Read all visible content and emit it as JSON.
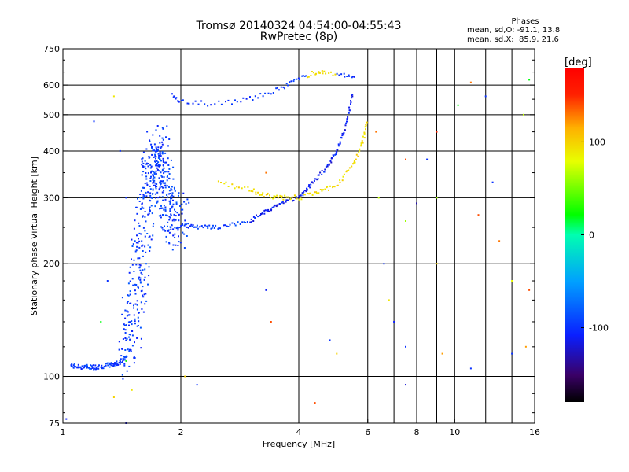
{
  "chart_data": {
    "type": "scatter",
    "title": "Tromsø 20140324 04:54:00-04:55:43",
    "subtitle": "RwPretec (8p)",
    "xlabel": "Frequency [MHz]",
    "ylabel": "Stationary phase Virtual Height [km]",
    "x_scale": "log",
    "y_scale": "log",
    "xlim": [
      1,
      16
    ],
    "ylim": [
      75,
      750
    ],
    "x_ticks": [
      1,
      2,
      4,
      6,
      8,
      10,
      16
    ],
    "x_tick_labels": [
      "1",
      "2",
      "4",
      "6",
      "8",
      "10",
      "16"
    ],
    "x_minor_ticks": [
      7,
      9,
      12,
      14
    ],
    "y_ticks": [
      75,
      100,
      200,
      300,
      400,
      500,
      600,
      750
    ],
    "y_tick_labels": [
      "75",
      "100",
      "200",
      "300",
      "400",
      "500",
      "600",
      "750"
    ],
    "grid": true,
    "legend": {
      "title": "Phases",
      "lines": [
        "mean, sd,O: -91.1, 13.8",
        "mean, sd,X:  85.9, 21.6"
      ]
    },
    "colorbar": {
      "label": "[deg]",
      "range": [
        -180,
        180
      ],
      "ticks": [
        100,
        0,
        -100
      ],
      "tick_labels": [
        "100",
        "0",
        "-100"
      ]
    },
    "o_trace": [
      {
        "x": 1.05,
        "y": 107
      },
      {
        "x": 1.1,
        "y": 106
      },
      {
        "x": 1.16,
        "y": 106
      },
      {
        "x": 1.22,
        "y": 106
      },
      {
        "x": 1.3,
        "y": 107
      },
      {
        "x": 1.36,
        "y": 108
      },
      {
        "x": 1.42,
        "y": 110
      },
      {
        "x": 1.46,
        "y": 114
      },
      {
        "x": 1.5,
        "y": 140
      },
      {
        "x": 1.55,
        "y": 180
      },
      {
        "x": 1.6,
        "y": 240
      },
      {
        "x": 1.65,
        "y": 320
      },
      {
        "x": 1.7,
        "y": 360
      },
      {
        "x": 1.75,
        "y": 400
      },
      {
        "x": 1.8,
        "y": 350
      },
      {
        "x": 1.85,
        "y": 300
      },
      {
        "x": 1.9,
        "y": 270
      },
      {
        "x": 2.0,
        "y": 255
      },
      {
        "x": 2.2,
        "y": 250
      },
      {
        "x": 2.5,
        "y": 250
      },
      {
        "x": 3.0,
        "y": 260
      },
      {
        "x": 3.3,
        "y": 275
      },
      {
        "x": 3.6,
        "y": 290
      },
      {
        "x": 4.0,
        "y": 300
      },
      {
        "x": 4.3,
        "y": 325
      },
      {
        "x": 4.7,
        "y": 360
      },
      {
        "x": 5.0,
        "y": 400
      },
      {
        "x": 5.3,
        "y": 470
      },
      {
        "x": 5.5,
        "y": 580
      }
    ],
    "o_upper_trace": [
      {
        "x": 1.9,
        "y": 560
      },
      {
        "x": 2.0,
        "y": 545
      },
      {
        "x": 2.3,
        "y": 535
      },
      {
        "x": 2.7,
        "y": 540
      },
      {
        "x": 3.1,
        "y": 555
      },
      {
        "x": 3.5,
        "y": 580
      },
      {
        "x": 3.8,
        "y": 605
      },
      {
        "x": 4.1,
        "y": 630
      },
      {
        "x": 4.4,
        "y": 650
      },
      {
        "x": 4.7,
        "y": 648
      },
      {
        "x": 5.2,
        "y": 640
      },
      {
        "x": 5.6,
        "y": 630
      }
    ],
    "x_trace": [
      {
        "x": 2.5,
        "y": 330
      },
      {
        "x": 3.0,
        "y": 315
      },
      {
        "x": 3.3,
        "y": 305
      },
      {
        "x": 3.6,
        "y": 300
      },
      {
        "x": 4.0,
        "y": 300
      },
      {
        "x": 4.5,
        "y": 310
      },
      {
        "x": 5.0,
        "y": 325
      },
      {
        "x": 5.5,
        "y": 365
      },
      {
        "x": 5.8,
        "y": 420
      },
      {
        "x": 6.0,
        "y": 480
      }
    ],
    "scattered_points": [
      {
        "x": 1.2,
        "y": 480,
        "phase": -100
      },
      {
        "x": 1.35,
        "y": 560,
        "phase": 90
      },
      {
        "x": 1.4,
        "y": 400,
        "phase": -100
      },
      {
        "x": 1.45,
        "y": 300,
        "phase": -100
      },
      {
        "x": 1.5,
        "y": 92,
        "phase": 90
      },
      {
        "x": 1.45,
        "y": 110,
        "phase": 30
      },
      {
        "x": 1.25,
        "y": 140,
        "phase": 20
      },
      {
        "x": 1.3,
        "y": 180,
        "phase": -100
      },
      {
        "x": 2.2,
        "y": 95,
        "phase": -100
      },
      {
        "x": 2.05,
        "y": 100,
        "phase": 100
      },
      {
        "x": 3.3,
        "y": 350,
        "phase": 130
      },
      {
        "x": 3.3,
        "y": 170,
        "phase": -110
      },
      {
        "x": 3.4,
        "y": 140,
        "phase": 140
      },
      {
        "x": 4.4,
        "y": 85,
        "phase": 140
      },
      {
        "x": 4.8,
        "y": 125,
        "phase": -100
      },
      {
        "x": 5.0,
        "y": 115,
        "phase": 100
      },
      {
        "x": 6.3,
        "y": 450,
        "phase": 130
      },
      {
        "x": 6.4,
        "y": 300,
        "phase": 70
      },
      {
        "x": 6.6,
        "y": 200,
        "phase": -100
      },
      {
        "x": 6.8,
        "y": 160,
        "phase": 90
      },
      {
        "x": 7.0,
        "y": 140,
        "phase": -110
      },
      {
        "x": 7.5,
        "y": 260,
        "phase": 60
      },
      {
        "x": 7.5,
        "y": 380,
        "phase": 140
      },
      {
        "x": 7.5,
        "y": 120,
        "phase": -100
      },
      {
        "x": 7.5,
        "y": 95,
        "phase": -120
      },
      {
        "x": 8.0,
        "y": 290,
        "phase": -130
      },
      {
        "x": 8.5,
        "y": 380,
        "phase": -100
      },
      {
        "x": 9.0,
        "y": 450,
        "phase": 150
      },
      {
        "x": 9.0,
        "y": 300,
        "phase": 60
      },
      {
        "x": 9.0,
        "y": 200,
        "phase": 100
      },
      {
        "x": 9.3,
        "y": 115,
        "phase": 120
      },
      {
        "x": 10.2,
        "y": 530,
        "phase": 20
      },
      {
        "x": 11.0,
        "y": 610,
        "phase": 130
      },
      {
        "x": 11.0,
        "y": 105,
        "phase": -100
      },
      {
        "x": 11.5,
        "y": 270,
        "phase": 140
      },
      {
        "x": 12.0,
        "y": 560,
        "phase": -100
      },
      {
        "x": 12.5,
        "y": 330,
        "phase": -100
      },
      {
        "x": 13.0,
        "y": 230,
        "phase": 130
      },
      {
        "x": 14.0,
        "y": 180,
        "phase": 80
      },
      {
        "x": 14.0,
        "y": 115,
        "phase": -100
      },
      {
        "x": 15.0,
        "y": 500,
        "phase": 70
      },
      {
        "x": 15.5,
        "y": 170,
        "phase": 140
      },
      {
        "x": 15.5,
        "y": 620,
        "phase": 20
      },
      {
        "x": 15.2,
        "y": 120,
        "phase": 120
      },
      {
        "x": 1.02,
        "y": 77,
        "phase": -110
      },
      {
        "x": 1.45,
        "y": 75,
        "phase": -120
      },
      {
        "x": 1.35,
        "y": 88,
        "phase": 100
      }
    ]
  }
}
